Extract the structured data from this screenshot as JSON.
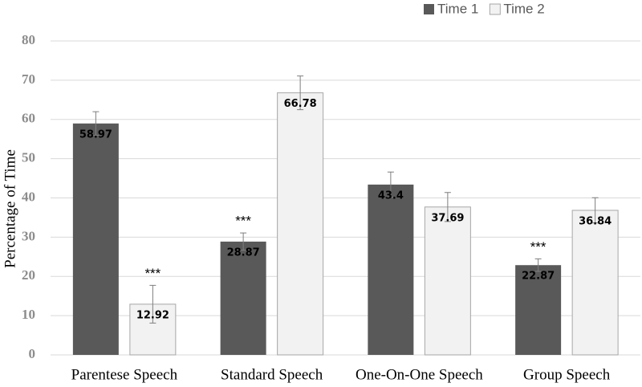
{
  "chart_data": {
    "type": "bar",
    "y_label": "Percentage of Time",
    "categories": [
      "Parentese Speech",
      "Standard Speech",
      "One-On-One Speech",
      "Group Speech"
    ],
    "series": [
      {
        "name": "Time 1",
        "color": "#595959",
        "values": [
          58.97,
          28.87,
          43.4,
          22.87
        ],
        "errors": [
          3,
          2.2,
          3.2,
          1.6
        ],
        "annotations": [
          null,
          "***",
          null,
          "***"
        ]
      },
      {
        "name": "Time 2",
        "color": "#f2f2f2",
        "values": [
          12.92,
          66.78,
          37.69,
          36.84
        ],
        "errors": [
          4.8,
          4.3,
          3.7,
          3.2
        ],
        "annotations": [
          "***",
          null,
          null,
          null
        ]
      }
    ],
    "ylim": [
      0,
      80
    ],
    "yticks": [
      0,
      10,
      20,
      30,
      40,
      50,
      60,
      70,
      80
    ],
    "grid": true,
    "legend": "top-right"
  }
}
